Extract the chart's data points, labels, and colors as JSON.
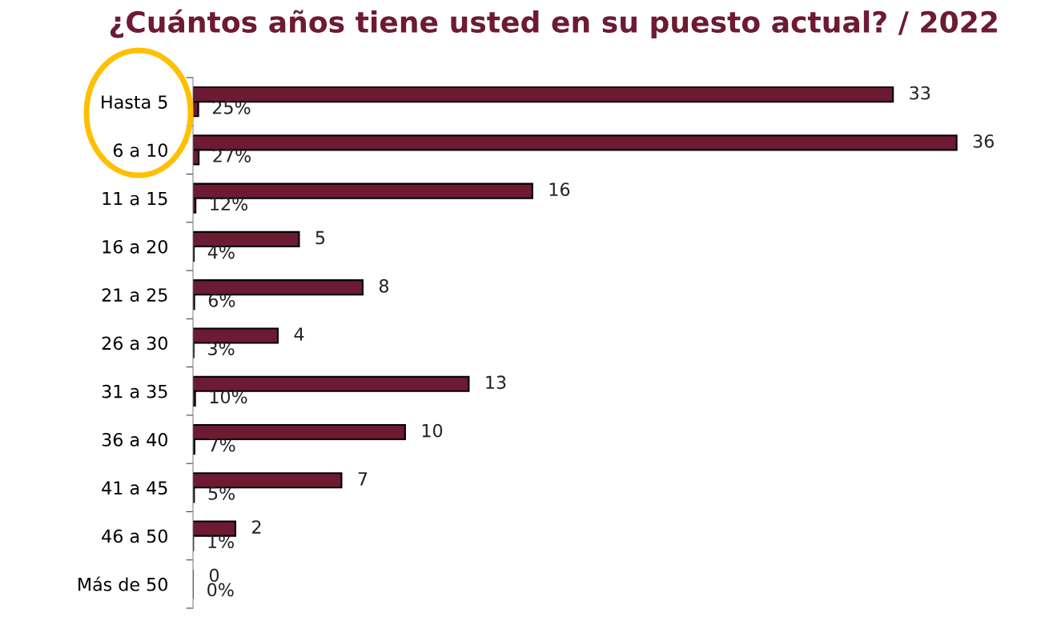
{
  "chart_data": {
    "type": "bar",
    "orientation": "horizontal",
    "title": "¿Cuántos años tiene usted en su puesto actual? / 2022",
    "categories": [
      "Hasta 5",
      "6 a 10",
      "11 a 15",
      "16 a 20",
      "21 a 25",
      "26 a 30",
      "31 a 35",
      "36 a 40",
      "41 a 45",
      "46 a 50",
      "Más de 50"
    ],
    "series": [
      {
        "color": "#6d1a33",
        "values": [
          33,
          36,
          16,
          5,
          8,
          4,
          13,
          10,
          7,
          2,
          0
        ],
        "value_labels": [
          "33",
          "36",
          "16",
          "5",
          "8",
          "4",
          "13",
          "10",
          "7",
          "2",
          "0"
        ]
      },
      {
        "color": "#6d1a33",
        "values": [
          0.25,
          0.27,
          0.12,
          0.04,
          0.06,
          0.03,
          0.1,
          0.07,
          0.05,
          0.01,
          0
        ],
        "value_labels": [
          "25%",
          "27%",
          "12%",
          "4%",
          "6%",
          "3%",
          "10%",
          "7%",
          "5%",
          "1%",
          "0%"
        ]
      }
    ],
    "tick_labels": "y",
    "grid": false,
    "legend": false
  }
}
